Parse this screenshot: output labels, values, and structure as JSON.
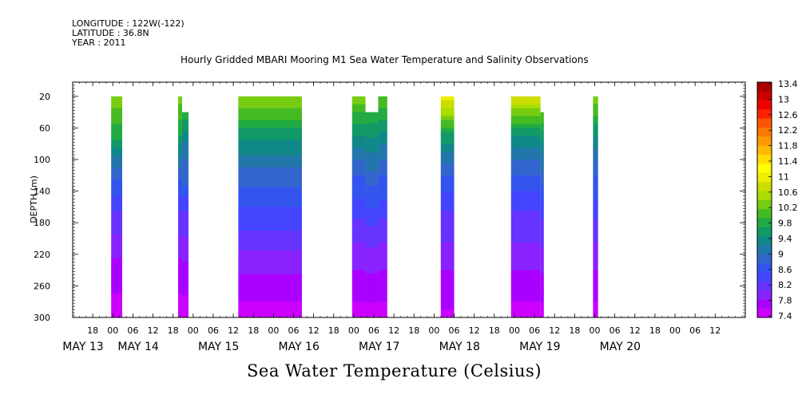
{
  "header": {
    "longitude": "LONGITUDE : 122W(-122)",
    "latitude": "LATITUDE : 36.8N",
    "year": "YEAR : 2011"
  },
  "chart_data": {
    "type": "heatmap",
    "title": "Hourly Gridded MBARI Mooring M1 Sea Water Temperature and Salinity Observations",
    "xlabel": "Sea Water Temperature (Celsius)",
    "ylabel": "DEPTH (m)",
    "ylim": [
      300,
      2
    ],
    "yticks": [
      20,
      60,
      100,
      140,
      180,
      220,
      260,
      300
    ],
    "xlim_hours": [
      0,
      201
    ],
    "xticks": [
      {
        "h": 6,
        "label": "18"
      },
      {
        "h": 12,
        "label": "00"
      },
      {
        "h": 18,
        "label": "06"
      },
      {
        "h": 24,
        "label": "12"
      },
      {
        "h": 30,
        "label": "18"
      },
      {
        "h": 36,
        "label": "00"
      },
      {
        "h": 42,
        "label": "06"
      },
      {
        "h": 48,
        "label": "12"
      },
      {
        "h": 54,
        "label": "18"
      },
      {
        "h": 60,
        "label": "00"
      },
      {
        "h": 66,
        "label": "06"
      },
      {
        "h": 72,
        "label": "12"
      },
      {
        "h": 78,
        "label": "18"
      },
      {
        "h": 84,
        "label": "00"
      },
      {
        "h": 90,
        "label": "06"
      },
      {
        "h": 96,
        "label": "12"
      },
      {
        "h": 102,
        "label": "18"
      },
      {
        "h": 108,
        "label": "00"
      },
      {
        "h": 114,
        "label": "06"
      },
      {
        "h": 120,
        "label": "12"
      },
      {
        "h": 126,
        "label": "18"
      },
      {
        "h": 132,
        "label": "00"
      },
      {
        "h": 138,
        "label": "06"
      },
      {
        "h": 144,
        "label": "12"
      },
      {
        "h": 150,
        "label": "18"
      },
      {
        "h": 156,
        "label": "00"
      },
      {
        "h": 162,
        "label": "06"
      },
      {
        "h": 168,
        "label": "12"
      },
      {
        "h": 174,
        "label": "18"
      },
      {
        "h": 180,
        "label": "00"
      },
      {
        "h": 186,
        "label": "06"
      },
      {
        "h": 192,
        "label": "12"
      }
    ],
    "date_labels": [
      {
        "h": 0,
        "label": "MAY 13"
      },
      {
        "h": 16.5,
        "label": "MAY 14"
      },
      {
        "h": 40.5,
        "label": "MAY 15"
      },
      {
        "h": 64.5,
        "label": "MAY 16"
      },
      {
        "h": 88.5,
        "label": "MAY 17"
      },
      {
        "h": 112.5,
        "label": "MAY 18"
      },
      {
        "h": 136.5,
        "label": "MAY 19"
      },
      {
        "h": 160.5,
        "label": "MAY 20"
      }
    ],
    "colorbar": {
      "labels": [
        "13.4",
        "13",
        "12.6",
        "12.2",
        "11.8",
        "11.4",
        "11",
        "10.6",
        "10.2",
        "9.8",
        "9.4",
        "9",
        "8.6",
        "8.2",
        "7.8",
        "7.4"
      ],
      "min": 7.4,
      "max": 13.6,
      "colors": [
        "#cc00ff",
        "#aa00ff",
        "#8822ff",
        "#6633ff",
        "#4444ff",
        "#3355ee",
        "#3366cc",
        "#2277aa",
        "#118888",
        "#119966",
        "#22aa44",
        "#44bb22",
        "#77cc11",
        "#aadd00",
        "#ccdd00",
        "#eeee00",
        "#ffff00",
        "#ffdd00",
        "#ffbb00",
        "#ff9900",
        "#ff7700",
        "#ff5500",
        "#ff2200",
        "#ee0000",
        "#cc0000",
        "#aa0000"
      ]
    },
    "blocks": [
      {
        "x0": 11.5,
        "x1": 14.8,
        "segments": [
          {
            "top": 20,
            "bot": 300,
            "profile": [
              10.4,
              9.9,
              9.0,
              8.4,
              8.0,
              7.7,
              7.5
            ]
          }
        ]
      },
      {
        "x0": 31.5,
        "x1": 34.6,
        "segments": [
          {
            "x0": 31.5,
            "x1": 32.7,
            "top": 20,
            "bot": 300,
            "profile": [
              10.4,
              9.8,
              9.0,
              8.4,
              8.0,
              7.7,
              7.5
            ]
          },
          {
            "x0": 32.7,
            "x1": 34.6,
            "top": 40,
            "bot": 300,
            "profile": [
              9.9,
              9.2,
              8.9,
              8.3,
              8.0,
              7.7,
              7.5
            ]
          }
        ]
      },
      {
        "x0": 49.5,
        "x1": 68.5,
        "segments": [
          {
            "top": 20,
            "bot": 300,
            "profile": [
              10.5,
              9.7,
              9.0,
              8.6,
              8.2,
              7.8,
              7.5
            ]
          }
        ]
      },
      {
        "x0": 83.5,
        "x1": 94.0,
        "segments": [
          {
            "x0": 83.5,
            "x1": 87.5,
            "top": 20,
            "bot": 300,
            "profile": [
              10.4,
              9.6,
              8.9,
              8.5,
              8.1,
              7.8,
              7.5
            ]
          },
          {
            "x0": 87.5,
            "x1": 91.3,
            "top": 40,
            "bot": 300,
            "profile": [
              10.0,
              9.4,
              8.9,
              8.5,
              8.1,
              7.8,
              7.5
            ]
          },
          {
            "x0": 91.3,
            "x1": 94.0,
            "top": 20,
            "bot": 300,
            "profile": [
              10.3,
              9.5,
              8.9,
              8.5,
              8.1,
              7.8,
              7.5
            ]
          }
        ]
      },
      {
        "x0": 110.0,
        "x1": 114.0,
        "segments": [
          {
            "top": 20,
            "bot": 300,
            "profile": [
              11.2,
              9.8,
              8.9,
              8.4,
              8.1,
              7.8,
              7.6
            ]
          }
        ]
      },
      {
        "x0": 131.0,
        "x1": 140.8,
        "segments": [
          {
            "x0": 131.0,
            "x1": 139.8,
            "top": 20,
            "bot": 300,
            "profile": [
              11.0,
              9.6,
              8.9,
              8.4,
              8.1,
              7.8,
              7.5
            ]
          },
          {
            "x0": 139.8,
            "x1": 140.8,
            "top": 40,
            "bot": 300,
            "profile": [
              10.3,
              9.4,
              8.9,
              8.4,
              8.1,
              7.8,
              7.5
            ]
          }
        ]
      },
      {
        "x0": 155.5,
        "x1": 157.0,
        "segments": [
          {
            "top": 20,
            "bot": 300,
            "profile": [
              10.5,
              9.6,
              8.9,
              8.5,
              8.1,
              7.8,
              7.5
            ]
          }
        ]
      }
    ]
  }
}
